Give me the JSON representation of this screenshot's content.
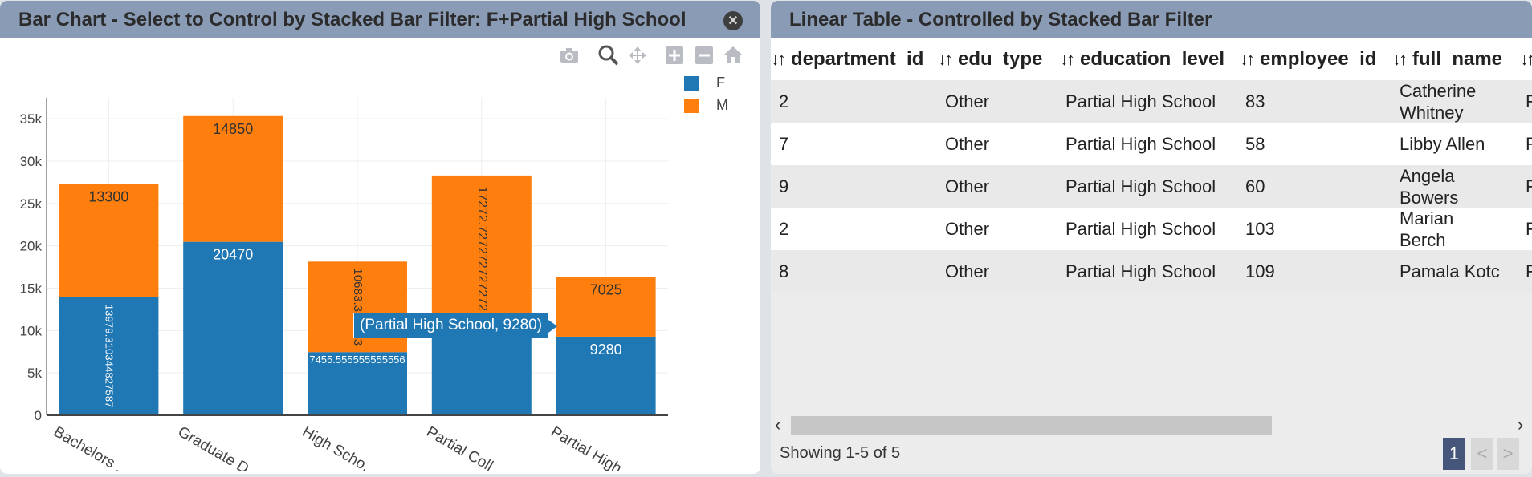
{
  "left_panel": {
    "title": "Bar Chart - Select to Control by Stacked Bar Filter: F+Partial High School",
    "close_glyph": "✕"
  },
  "modebar": {
    "icons": [
      "camera-icon",
      "zoom-icon",
      "pan-icon",
      "zoom-in-icon",
      "zoom-out-icon",
      "home-icon"
    ]
  },
  "chart_data": {
    "type": "bar",
    "stacked": true,
    "categories": [
      "Bachelors ...",
      "Graduate D...",
      "High Scho...",
      "Partial Coll...",
      "Partial High..."
    ],
    "series": [
      {
        "name": "F",
        "color": "#1f77b4",
        "values": [
          13979.310344827587,
          20470,
          7455.555555555556,
          11030,
          9280
        ],
        "labels": [
          "13979.310344827587",
          "20470",
          "7455.555555555556",
          "",
          "9280"
        ]
      },
      {
        "name": "M",
        "color": "#ff7f0e",
        "values": [
          13300,
          14850,
          10683.333333,
          17272.727272727272,
          7025
        ],
        "labels": [
          "13300",
          "14850",
          "10683.333333",
          "17272.727272727272",
          "7025"
        ]
      }
    ],
    "yticks": [
      "0",
      "5k",
      "10k",
      "15k",
      "20k",
      "25k",
      "30k",
      "35k"
    ],
    "ylim": [
      0,
      37500
    ],
    "legend": [
      "F",
      "M"
    ],
    "legend_position": "top-right",
    "grid": true,
    "tooltip": "(Partial High School, 9280)"
  },
  "right_panel": {
    "title": "Linear Table - Controlled by Stacked Bar Filter",
    "columns": [
      "department_id",
      "edu_type",
      "education_level",
      "employee_id",
      "full_name",
      ""
    ],
    "rows": [
      [
        "2",
        "Other",
        "Partial High School",
        "83",
        "Catherine Whitney",
        "F"
      ],
      [
        "7",
        "Other",
        "Partial High School",
        "58",
        "Libby Allen",
        "F"
      ],
      [
        "9",
        "Other",
        "Partial High School",
        "60",
        "Angela Bowers",
        "F"
      ],
      [
        "2",
        "Other",
        "Partial High School",
        "103",
        "Marian Berch",
        "F"
      ],
      [
        "8",
        "Other",
        "Partial High School",
        "109",
        "Pamala Kotc",
        "F"
      ]
    ],
    "sort_glyph": "↓↑",
    "scroll_left": "‹",
    "scroll_right": "›",
    "showing": "Showing 1-5 of 5",
    "pagination": {
      "current": "1",
      "prev": "<",
      "next": ">"
    }
  }
}
